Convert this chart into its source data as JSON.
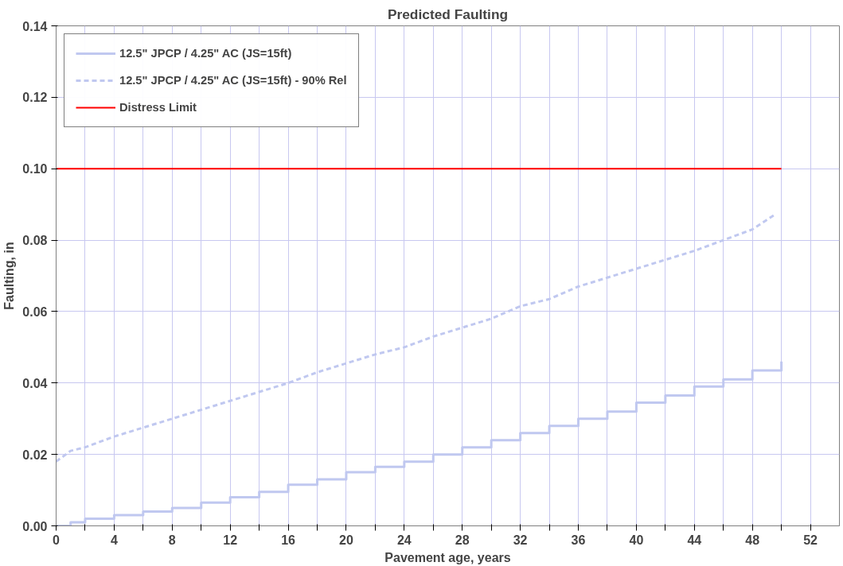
{
  "chart_data": {
    "type": "line",
    "title": "Predicted Faulting",
    "xlabel": "Pavement age, years",
    "ylabel": "Faulting, in",
    "xlim": [
      0,
      54
    ],
    "ylim": [
      0,
      0.14
    ],
    "xticks": [
      0,
      {
        "value": 2,
        "label": null
      },
      4,
      {
        "value": 6,
        "label": null
      },
      8,
      {
        "value": 10,
        "label": null
      },
      12,
      {
        "value": 14,
        "label": null
      },
      16,
      {
        "value": 18,
        "label": null
      },
      20,
      {
        "value": 22,
        "label": null
      },
      24,
      {
        "value": 26,
        "label": null
      },
      28,
      {
        "value": 30,
        "label": null
      },
      32,
      {
        "value": 34,
        "label": null
      },
      36,
      {
        "value": 38,
        "label": null
      },
      40,
      {
        "value": 42,
        "label": null
      },
      44,
      {
        "value": 46,
        "label": null
      },
      48,
      {
        "value": 50,
        "label": null
      },
      52
    ],
    "yticks": [
      {
        "value": 0,
        "label": "0.00"
      },
      {
        "value": 0.02,
        "label": "0.02"
      },
      {
        "value": 0.04,
        "label": "0.04"
      },
      {
        "value": 0.06,
        "label": "0.06"
      },
      {
        "value": 0.08,
        "label": "0.08"
      },
      {
        "value": 0.1,
        "label": "0.10"
      },
      {
        "value": 0.12,
        "label": "0.12"
      },
      {
        "value": 0.14,
        "label": "0.14"
      }
    ],
    "grid": true,
    "legend": "top left",
    "marker": "none",
    "series": [
      {
        "name": "12.5\" JPCP / 4.25\" AC (JS=15ft)",
        "type": "step",
        "color": "#c0c8f0",
        "line_style": "solid",
        "x": [
          0,
          1,
          2,
          4,
          6,
          8,
          10,
          12,
          14,
          16,
          18,
          20,
          22,
          24,
          26,
          28,
          30,
          32,
          34,
          36,
          38,
          40,
          42,
          44,
          46,
          48,
          50
        ],
        "values": [
          0,
          0.001,
          0.002,
          0.003,
          0.004,
          0.005,
          0.0065,
          0.008,
          0.0095,
          0.0115,
          0.013,
          0.015,
          0.0165,
          0.018,
          0.02,
          0.022,
          0.024,
          0.026,
          0.028,
          0.03,
          0.032,
          0.0345,
          0.0365,
          0.039,
          0.041,
          0.0435,
          0.046
        ]
      },
      {
        "name": "12.5\" JPCP / 4.25\" AC (JS=15ft) - 90% Rel",
        "type": "line",
        "color": "#c0c8f0",
        "line_style": "dashed",
        "x": [
          0,
          1,
          2,
          4,
          6,
          8,
          10,
          12,
          14,
          16,
          18,
          20,
          22,
          24,
          26,
          28,
          30,
          32,
          34,
          36,
          38,
          40,
          42,
          44,
          46,
          48,
          49.5
        ],
        "values": [
          0.018,
          0.021,
          0.022,
          0.025,
          0.0275,
          0.03,
          0.0325,
          0.035,
          0.0375,
          0.04,
          0.043,
          0.0455,
          0.048,
          0.05,
          0.053,
          0.0555,
          0.058,
          0.0615,
          0.0635,
          0.067,
          0.0695,
          0.072,
          0.0745,
          0.077,
          0.08,
          0.083,
          0.087
        ]
      },
      {
        "name": "Distress Limit",
        "color": "#ff0000",
        "line_style": "solid",
        "x": [
          0,
          50
        ],
        "values": [
          0.1,
          0.1
        ]
      }
    ]
  }
}
